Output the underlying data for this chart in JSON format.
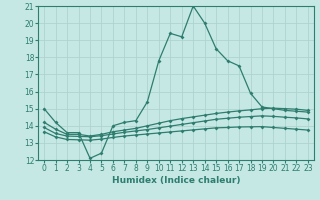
{
  "x": [
    0,
    1,
    2,
    3,
    4,
    5,
    6,
    7,
    8,
    9,
    10,
    11,
    12,
    13,
    14,
    15,
    16,
    17,
    18,
    19,
    20,
    21,
    22,
    23
  ],
  "line1": [
    15.0,
    14.2,
    13.6,
    13.6,
    12.1,
    12.4,
    14.0,
    14.2,
    14.3,
    15.4,
    17.8,
    19.4,
    19.2,
    21.0,
    20.0,
    18.5,
    17.8,
    17.5,
    15.9,
    15.1,
    15.0,
    14.9,
    14.85,
    14.8
  ],
  "line2": [
    14.2,
    13.8,
    13.5,
    13.5,
    13.4,
    13.5,
    13.65,
    13.75,
    13.85,
    14.0,
    14.15,
    14.3,
    14.42,
    14.52,
    14.62,
    14.72,
    14.8,
    14.87,
    14.93,
    15.0,
    15.03,
    15.0,
    14.97,
    14.9
  ],
  "line3": [
    13.9,
    13.55,
    13.4,
    13.38,
    13.36,
    13.42,
    13.52,
    13.62,
    13.7,
    13.78,
    13.88,
    13.98,
    14.08,
    14.18,
    14.28,
    14.38,
    14.44,
    14.5,
    14.54,
    14.58,
    14.55,
    14.5,
    14.46,
    14.4
  ],
  "line4": [
    13.65,
    13.35,
    13.2,
    13.18,
    13.16,
    13.22,
    13.32,
    13.4,
    13.46,
    13.52,
    13.58,
    13.64,
    13.7,
    13.76,
    13.82,
    13.88,
    13.9,
    13.93,
    13.94,
    13.95,
    13.9,
    13.85,
    13.8,
    13.75
  ],
  "color_main": "#2e7d6e",
  "bg_color": "#c5e8e5",
  "grid_color": "#afd4d0",
  "ylim": [
    12,
    21
  ],
  "xlim": [
    -0.5,
    23.5
  ],
  "yticks": [
    12,
    13,
    14,
    15,
    16,
    17,
    18,
    19,
    20,
    21
  ],
  "xtick_labels": [
    "0",
    "1",
    "2",
    "3",
    "4",
    "5",
    "6",
    "7",
    "8",
    "9",
    "10",
    "11",
    "12",
    "13",
    "14",
    "15",
    "16",
    "17",
    "18",
    "19",
    "20",
    "21",
    "22",
    "23"
  ],
  "xlabel": "Humidex (Indice chaleur)",
  "xlabel_fontsize": 6.5,
  "tick_fontsize": 5.5,
  "marker": "D",
  "markersize": 2.0,
  "linewidth": 0.9
}
